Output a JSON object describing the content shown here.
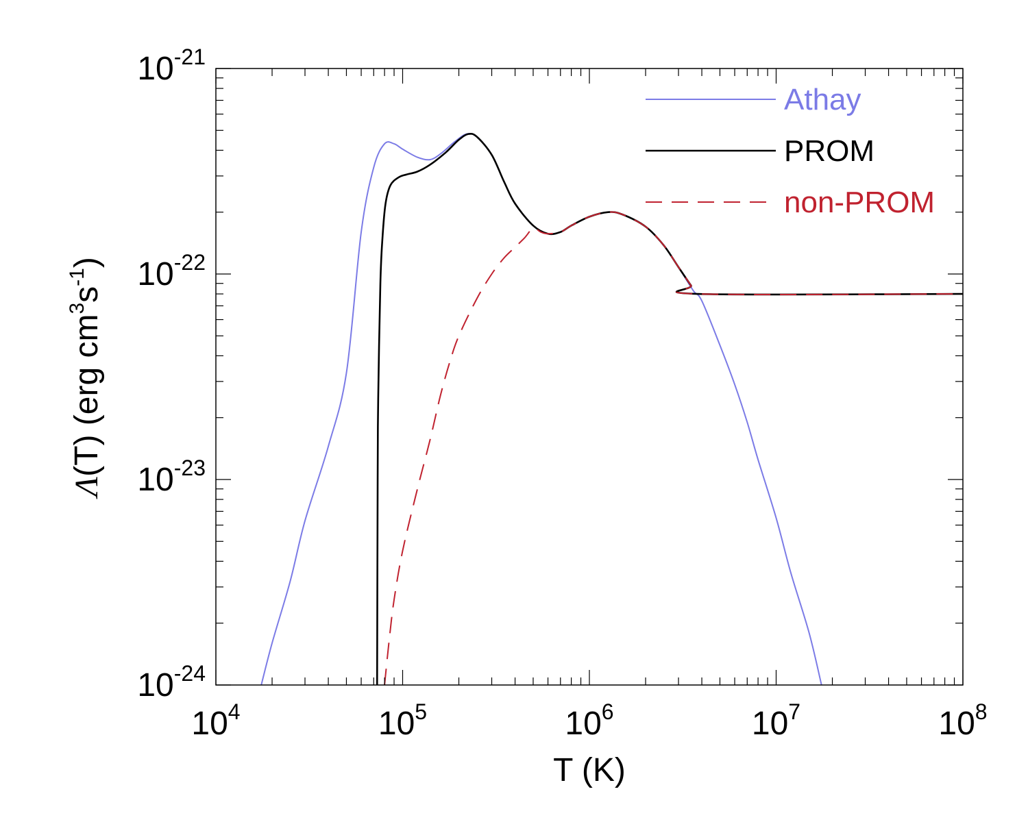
{
  "chart_data": {
    "type": "line",
    "xscale": "log",
    "yscale": "log",
    "xlabel": "T (K)",
    "ylabel": "Λ(T) (erg cm³s⁻¹)",
    "ylabel_parts": {
      "lambda": "Λ",
      "pre": "(T) (erg cm",
      "exp3": "3",
      "mid": "s",
      "expm1": "-1",
      "post": ")"
    },
    "xlim": [
      10000,
      100000000
    ],
    "ylim": [
      1e-24,
      1e-21
    ],
    "x_ticks": [
      {
        "value": 10000,
        "base": "10",
        "exp": "4"
      },
      {
        "value": 100000,
        "base": "10",
        "exp": "5"
      },
      {
        "value": 1000000,
        "base": "10",
        "exp": "6"
      },
      {
        "value": 10000000,
        "base": "10",
        "exp": "7"
      },
      {
        "value": 100000000,
        "base": "10",
        "exp": "8"
      }
    ],
    "y_ticks": [
      {
        "value": 1e-24,
        "base": "10",
        "exp": "-24"
      },
      {
        "value": 1e-23,
        "base": "10",
        "exp": "-23"
      },
      {
        "value": 1e-22,
        "base": "10",
        "exp": "-22"
      },
      {
        "value": 1e-21,
        "base": "10",
        "exp": "-21"
      }
    ],
    "legend_position": "top-right",
    "series": [
      {
        "name": "Athay",
        "color": "#7b7be6",
        "dash": "solid",
        "points": [
          [
            17500,
            1e-24
          ],
          [
            20000,
            1.6e-24
          ],
          [
            25000,
            3.2e-24
          ],
          [
            30000,
            6.3e-24
          ],
          [
            40000,
            1.45e-23
          ],
          [
            50000,
            3.3e-23
          ],
          [
            60000,
            1.6e-22
          ],
          [
            70000,
            3.3e-22
          ],
          [
            80000,
            4.3e-22
          ],
          [
            90000,
            4.3e-22
          ],
          [
            100000,
            4.05e-22
          ],
          [
            120000,
            3.7e-22
          ],
          [
            140000,
            3.6e-22
          ],
          [
            160000,
            3.85e-22
          ],
          [
            190000,
            4.4e-22
          ],
          [
            220000,
            4.8e-22
          ],
          [
            250000,
            4.65e-22
          ],
          [
            300000,
            3.8e-22
          ],
          [
            350000,
            2.8e-22
          ],
          [
            400000,
            2.2e-22
          ],
          [
            500000,
            1.72e-22
          ],
          [
            600000,
            1.57e-22
          ],
          [
            700000,
            1.6e-22
          ],
          [
            800000,
            1.72e-22
          ],
          [
            1000000,
            1.9e-22
          ],
          [
            1260000,
            2e-22
          ],
          [
            1500000,
            1.95e-22
          ],
          [
            2000000,
            1.7e-22
          ],
          [
            2500000,
            1.38e-22
          ],
          [
            3000000,
            1.08e-22
          ],
          [
            3600000,
            8.3e-23
          ],
          [
            4000000,
            7.4e-23
          ],
          [
            5000000,
            4.5e-23
          ],
          [
            6000000,
            2.9e-23
          ],
          [
            7000000,
            1.9e-23
          ],
          [
            8000000,
            1.25e-23
          ],
          [
            10000000,
            6.5e-24
          ],
          [
            12000000,
            3.5e-24
          ],
          [
            15000000,
            1.8e-24
          ],
          [
            17500000,
            1e-24
          ]
        ]
      },
      {
        "name": "PROM",
        "color": "#000000",
        "dash": "solid",
        "points": [
          [
            73000,
            1e-24
          ],
          [
            73500,
            1e-23
          ],
          [
            74000,
            2.5e-23
          ],
          [
            76000,
            9e-23
          ],
          [
            78000,
            1.5e-22
          ],
          [
            81000,
            2.2e-22
          ],
          [
            86000,
            2.7e-22
          ],
          [
            95000,
            2.95e-22
          ],
          [
            105000,
            3.05e-22
          ],
          [
            120000,
            3.15e-22
          ],
          [
            140000,
            3.4e-22
          ],
          [
            170000,
            3.9e-22
          ],
          [
            200000,
            4.5e-22
          ],
          [
            225000,
            4.8e-22
          ],
          [
            250000,
            4.65e-22
          ],
          [
            300000,
            3.8e-22
          ],
          [
            350000,
            2.8e-22
          ],
          [
            400000,
            2.2e-22
          ],
          [
            500000,
            1.72e-22
          ],
          [
            600000,
            1.57e-22
          ],
          [
            700000,
            1.6e-22
          ],
          [
            800000,
            1.72e-22
          ],
          [
            1000000,
            1.9e-22
          ],
          [
            1260000,
            2e-22
          ],
          [
            1500000,
            1.95e-22
          ],
          [
            2000000,
            1.7e-22
          ],
          [
            2500000,
            1.38e-22
          ],
          [
            3000000,
            1.08e-22
          ],
          [
            3500000,
            8.8e-23
          ],
          [
            3800000,
            8e-23
          ],
          [
            100000000,
            8e-23
          ]
        ]
      },
      {
        "name": "non-PROM",
        "color": "#c0222f",
        "dash": "dashed",
        "points": [
          [
            80000,
            1e-24
          ],
          [
            85000,
            1.7e-24
          ],
          [
            90000,
            2.6e-24
          ],
          [
            100000,
            4.5e-24
          ],
          [
            120000,
            9e-24
          ],
          [
            140000,
            1.55e-23
          ],
          [
            160000,
            2.6e-23
          ],
          [
            180000,
            3.8e-23
          ],
          [
            200000,
            5e-23
          ],
          [
            250000,
            7.6e-23
          ],
          [
            300000,
            1e-22
          ],
          [
            350000,
            1.2e-22
          ],
          [
            400000,
            1.35e-22
          ],
          [
            450000,
            1.5e-22
          ],
          [
            500000,
            1.67e-22
          ],
          [
            550000,
            1.6e-22
          ],
          [
            600000,
            1.57e-22
          ],
          [
            700000,
            1.6e-22
          ],
          [
            800000,
            1.72e-22
          ],
          [
            1000000,
            1.9e-22
          ],
          [
            1260000,
            2e-22
          ],
          [
            1500000,
            1.95e-22
          ],
          [
            2000000,
            1.7e-22
          ],
          [
            2500000,
            1.38e-22
          ],
          [
            3000000,
            1.08e-22
          ],
          [
            3500000,
            8.8e-23
          ],
          [
            3800000,
            8e-23
          ],
          [
            100000000,
            8e-23
          ]
        ]
      }
    ]
  }
}
